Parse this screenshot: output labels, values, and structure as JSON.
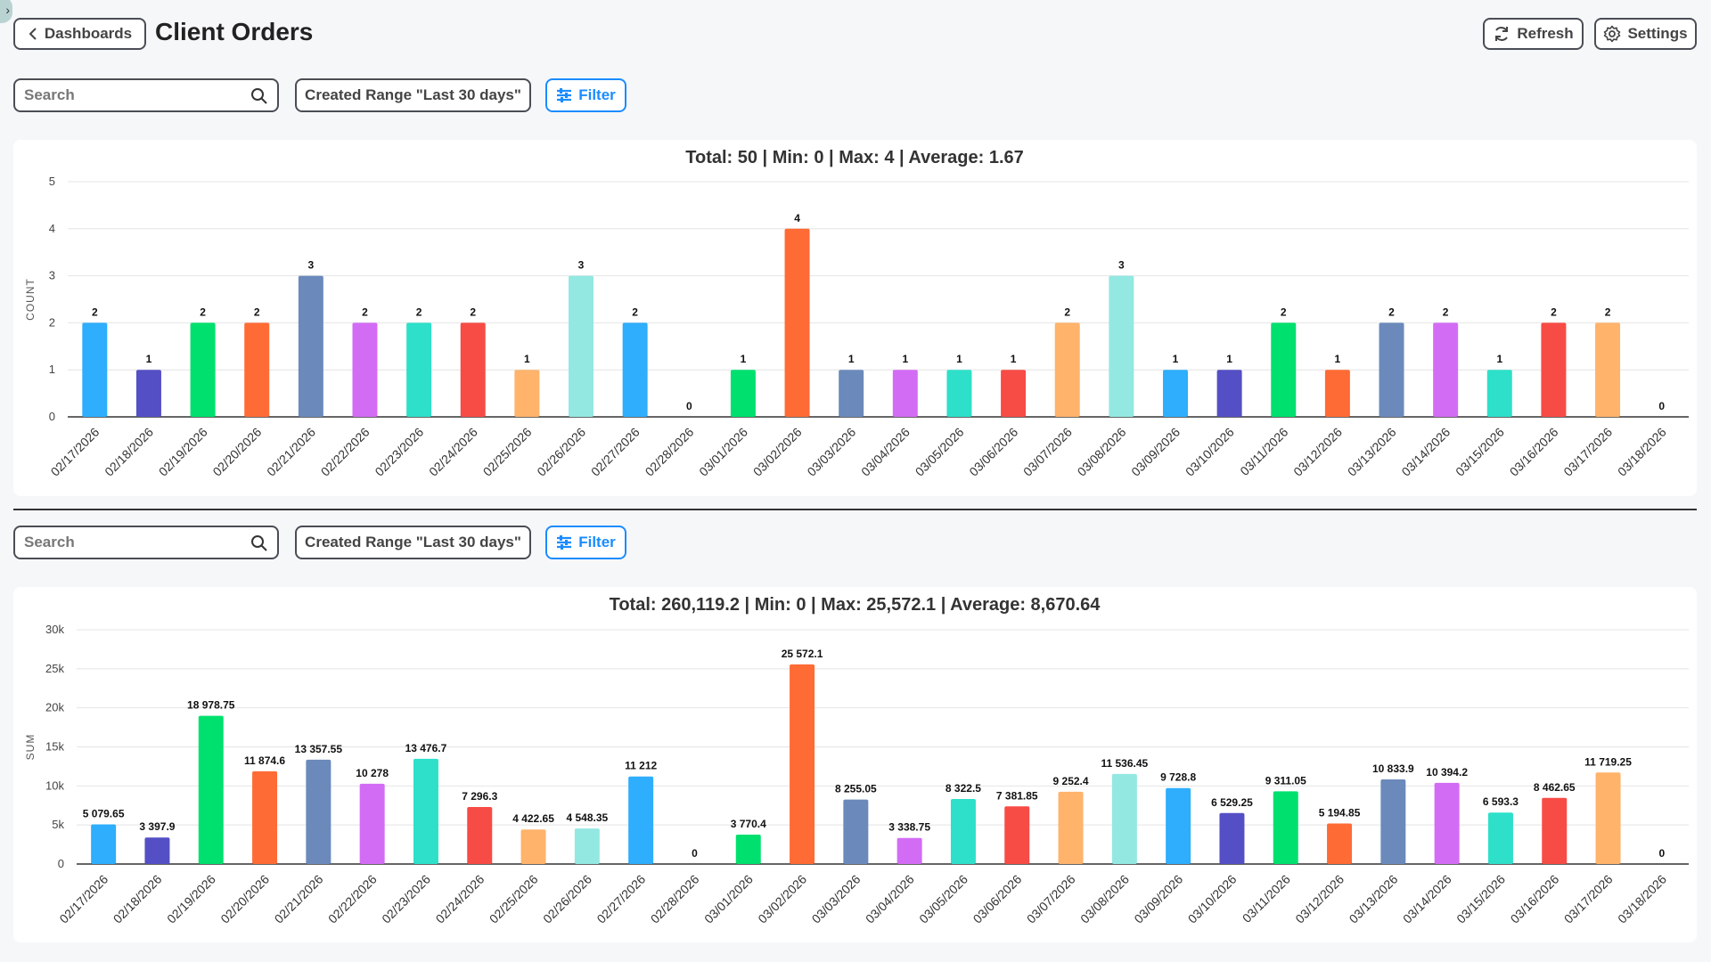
{
  "header": {
    "back_label": "Dashboards",
    "title": "Client Orders",
    "refresh_label": "Refresh",
    "settings_label": "Settings"
  },
  "toolbars": [
    {
      "search_placeholder": "Search",
      "search_value": "",
      "range_label": "Created Range \"Last 30 days\"",
      "filter_label": "Filter"
    },
    {
      "search_placeholder": "Search",
      "search_value": "",
      "range_label": "Created Range \"Last 30 days\"",
      "filter_label": "Filter"
    }
  ],
  "palette": [
    "#2eaefc",
    "#554fc5",
    "#00e06e",
    "#ff6b35",
    "#6b8abb",
    "#d36cf5",
    "#2ee0c9",
    "#f74b45",
    "#ffb36b",
    "#93e8e2"
  ],
  "accent_color": "#1a8cff",
  "chart_data": [
    {
      "type": "bar",
      "title": "Total: 50 | Min: 0 | Max: 4 | Average: 1.67",
      "ylabel": "COUNT",
      "xlabel": "",
      "ylim": [
        0,
        5
      ],
      "yticks": [
        "0",
        "1",
        "2",
        "3",
        "4",
        "5"
      ],
      "grid": true,
      "categories": [
        "02/17/2026",
        "02/18/2026",
        "02/19/2026",
        "02/20/2026",
        "02/21/2026",
        "02/22/2026",
        "02/23/2026",
        "02/24/2026",
        "02/25/2026",
        "02/26/2026",
        "02/27/2026",
        "02/28/2026",
        "03/01/2026",
        "03/02/2026",
        "03/03/2026",
        "03/04/2026",
        "03/05/2026",
        "03/06/2026",
        "03/07/2026",
        "03/08/2026",
        "03/09/2026",
        "03/10/2026",
        "03/11/2026",
        "03/12/2026",
        "03/13/2026",
        "03/14/2026",
        "03/15/2026",
        "03/16/2026",
        "03/17/2026",
        "03/18/2026"
      ],
      "values": [
        2,
        1,
        2,
        2,
        3,
        2,
        2,
        2,
        1,
        3,
        2,
        0,
        1,
        4,
        1,
        1,
        1,
        1,
        2,
        3,
        1,
        1,
        2,
        1,
        2,
        2,
        1,
        2,
        2,
        0
      ]
    },
    {
      "type": "bar",
      "title": "Total: 260,119.2 | Min: 0 | Max: 25,572.1 | Average: 8,670.64",
      "ylabel": "SUM",
      "xlabel": "",
      "ylim": [
        0,
        30000
      ],
      "yticks": [
        "0",
        "5k",
        "10k",
        "15k",
        "20k",
        "25k",
        "30k"
      ],
      "grid": true,
      "categories": [
        "02/17/2026",
        "02/18/2026",
        "02/19/2026",
        "02/20/2026",
        "02/21/2026",
        "02/22/2026",
        "02/23/2026",
        "02/24/2026",
        "02/25/2026",
        "02/26/2026",
        "02/27/2026",
        "02/28/2026",
        "03/01/2026",
        "03/02/2026",
        "03/03/2026",
        "03/04/2026",
        "03/05/2026",
        "03/06/2026",
        "03/07/2026",
        "03/08/2026",
        "03/09/2026",
        "03/10/2026",
        "03/11/2026",
        "03/12/2026",
        "03/13/2026",
        "03/14/2026",
        "03/15/2026",
        "03/16/2026",
        "03/17/2026",
        "03/18/2026"
      ],
      "values": [
        5079.65,
        3397.9,
        18978.75,
        11874.6,
        13357.55,
        10278,
        13476.7,
        7296.3,
        4422.65,
        4548.35,
        11212,
        0,
        3770.4,
        25572.1,
        8255.05,
        3338.75,
        8322.5,
        7381.85,
        9252.4,
        11536.45,
        9728.8,
        6529.25,
        9311.05,
        5194.85,
        10833.9,
        10394.2,
        6593.3,
        8462.65,
        11719.25,
        0
      ]
    }
  ]
}
